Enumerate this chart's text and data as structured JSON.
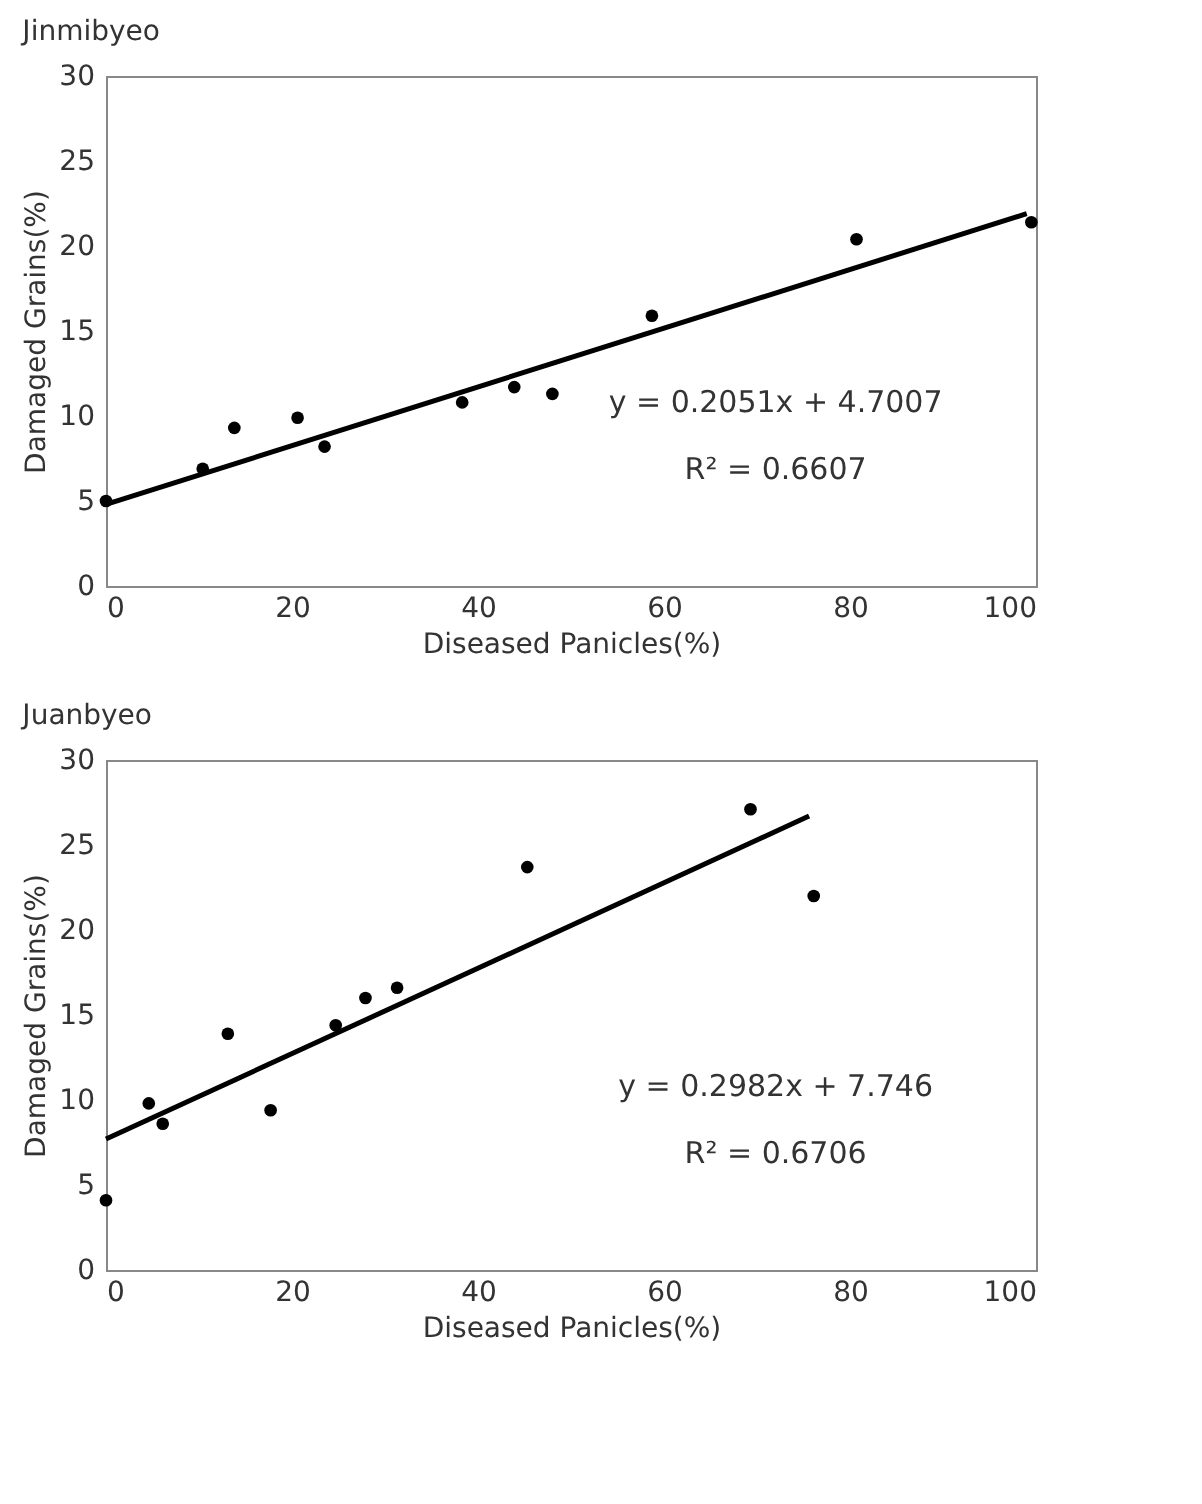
{
  "chart_data": [
    {
      "type": "scatter",
      "title": "Jinmibyeo",
      "xlabel": "Diseased Panicles(%)",
      "ylabel": "Damaged Grains(%)",
      "xlim": [
        0,
        100
      ],
      "ylim": [
        0,
        30
      ],
      "xticks": [
        0,
        20,
        40,
        60,
        80,
        100
      ],
      "yticks": [
        0,
        5,
        10,
        15,
        20,
        25,
        30
      ],
      "series": [
        {
          "marker": "circle",
          "color": "#000000",
          "x": [
            0,
            10.4,
            13.8,
            20.6,
            23.5,
            38.3,
            43.9,
            48,
            58.7,
            80.7,
            99.5
          ],
          "values": [
            5,
            6.9,
            9.3,
            9.9,
            8.2,
            10.8,
            11.7,
            11.3,
            15.9,
            20.4,
            21.4
          ]
        },
        {
          "type": "line",
          "color": "#000000",
          "x": [
            0,
            99
          ],
          "values": [
            4.8,
            21.9
          ]
        }
      ],
      "annotations": [
        "y = 0.2051x + 4.7007",
        "R² = 0.6607"
      ]
    },
    {
      "type": "scatter",
      "title": "Juanbyeo",
      "xlabel": "Diseased Panicles(%)",
      "ylabel": "Damaged Grains(%)",
      "xlim": [
        0,
        100
      ],
      "ylim": [
        0,
        30
      ],
      "xticks": [
        0,
        20,
        40,
        60,
        80,
        100
      ],
      "yticks": [
        0,
        5,
        10,
        15,
        20,
        25,
        30
      ],
      "series": [
        {
          "marker": "circle",
          "color": "#000000",
          "x": [
            0,
            4.6,
            6.1,
            13.1,
            17.7,
            24.7,
            27.9,
            31.3,
            45.3,
            69.3,
            76.1
          ],
          "values": [
            4.1,
            9.8,
            8.6,
            13.9,
            9.4,
            14.4,
            16,
            16.6,
            23.7,
            27.1,
            22
          ]
        },
        {
          "type": "line",
          "color": "#000000",
          "x": [
            0,
            75.6
          ],
          "values": [
            7.7,
            26.7
          ]
        }
      ],
      "annotations": [
        "y = 0.2982x + 7.746",
        "R² = 0.6706"
      ]
    }
  ]
}
